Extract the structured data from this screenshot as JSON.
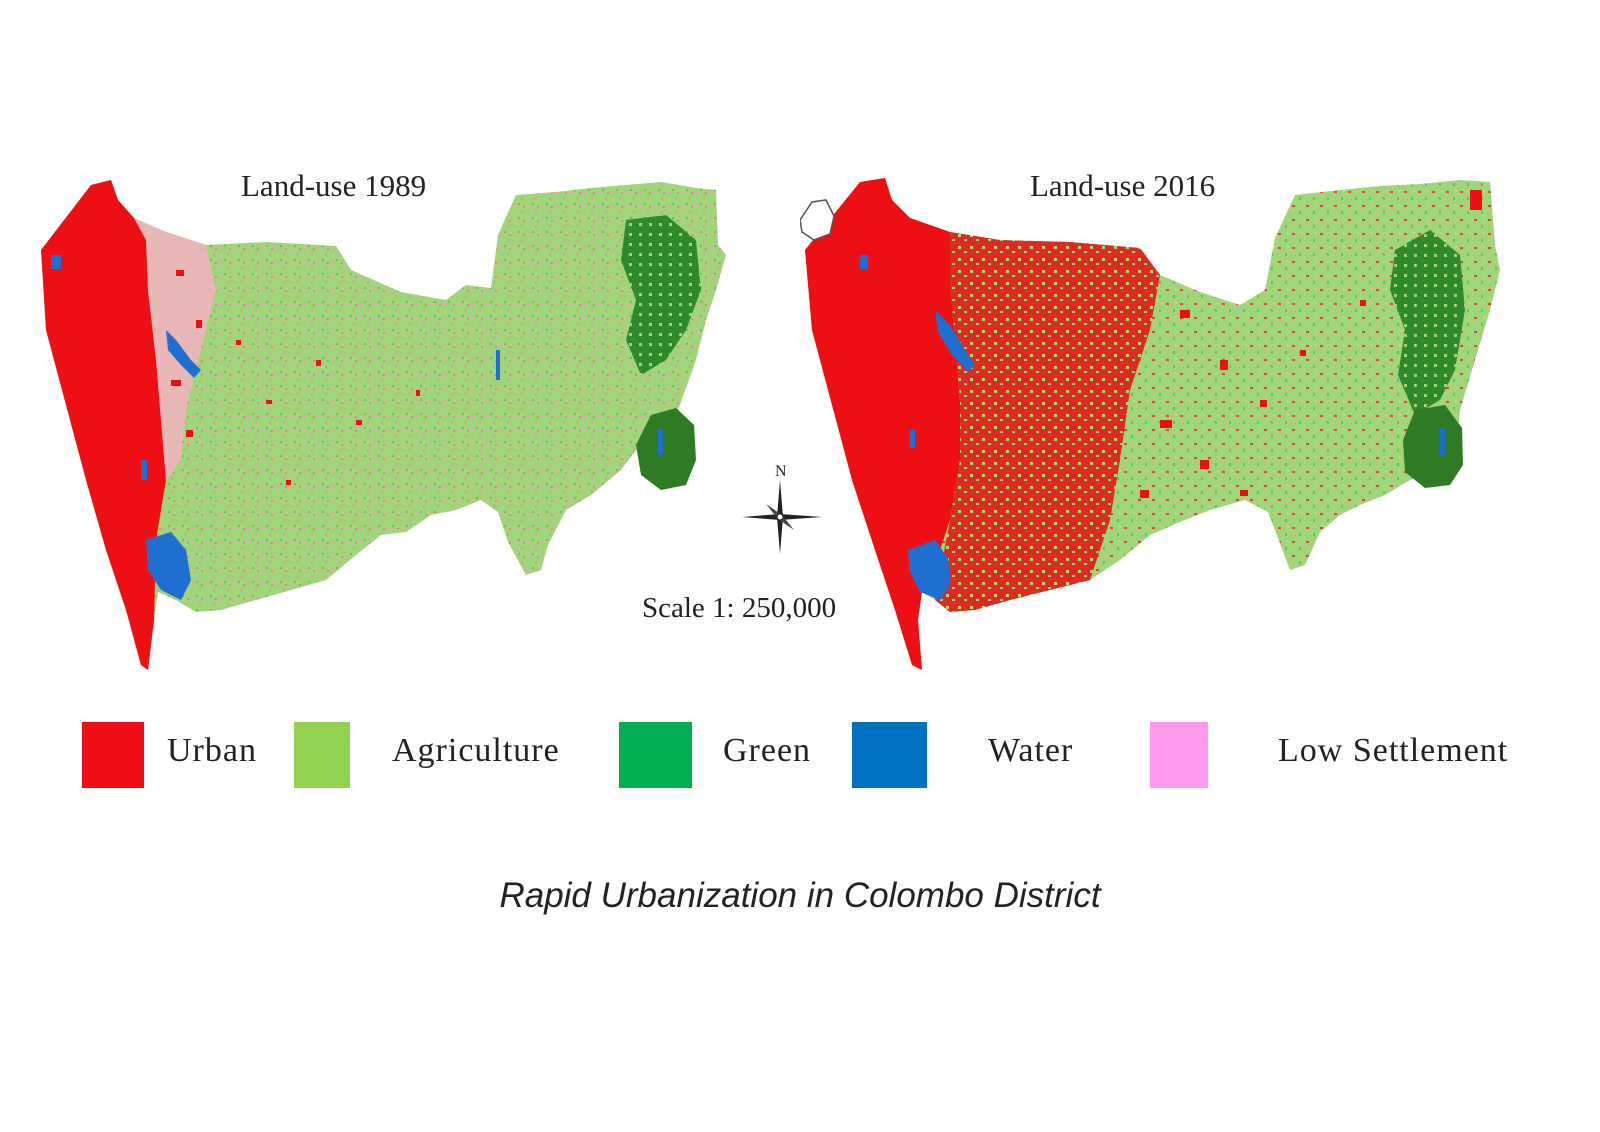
{
  "maps": [
    {
      "id": "1989",
      "title": "Land-use 1989"
    },
    {
      "id": "2016",
      "title": "Land-use 2016"
    }
  ],
  "north_label": "N",
  "scale": "Scale 1: 250,000",
  "legend": [
    {
      "label": "Urban",
      "color": "#ee0f14"
    },
    {
      "label": "Agriculture",
      "color": "#92d050"
    },
    {
      "label": "Green",
      "color": "#00b050"
    },
    {
      "label": "Water",
      "color": "#0070c0"
    },
    {
      "label": "Low Settlement",
      "color": "#ff99ee"
    }
  ],
  "caption": "Rapid Urbanization in Colombo District"
}
